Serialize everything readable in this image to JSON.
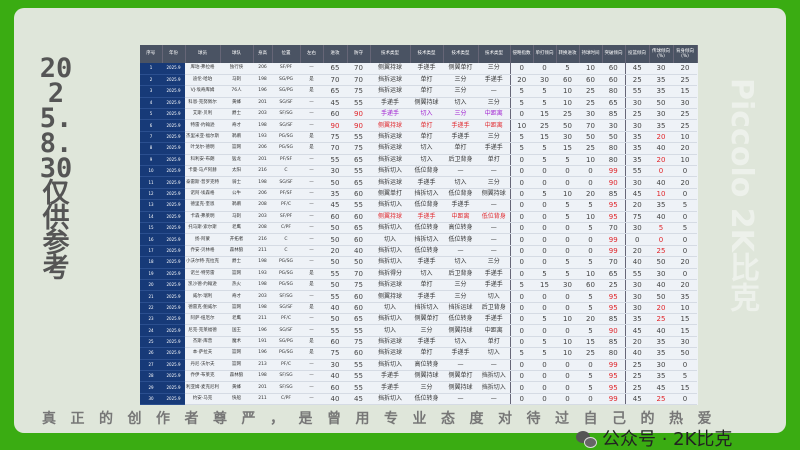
{
  "side_title": "2025.8.30仅供参考",
  "watermark": "Piccolo 2K比克",
  "motto": "真正的创作者尊严，是曾用专业态度对待过自己的热爱",
  "wechat": {
    "icon": "wechat-icon",
    "label": "公众号 · 2K比克"
  },
  "colors": {
    "background": "#3aac12",
    "header": "#4a5363",
    "index_col": "#173a78",
    "highlight_red": "#e0262b",
    "highlight_purple": "#a020d0"
  },
  "headers": [
    "序号",
    "年份",
    "球员",
    "球队",
    "身高",
    "位置",
    "左右",
    "进攻",
    "防守",
    "技术类型",
    "技术类型",
    "技术类型",
    "技术类型",
    "侵略指数",
    "单打倾向",
    "转换进攻",
    "持球时间",
    "突破倾向",
    "投篮倾向",
    "传球倾向(%)",
    "背身倾向(%)"
  ],
  "rows": [
    [
      "1",
      "2025.9",
      "库珀·弗拉格",
      "独行侠",
      "206",
      "SF/PF",
      "—",
      "65",
      "70",
      "侧翼持球",
      "手递手",
      "侧翼单打",
      "三分",
      "0",
      "0",
      "5",
      "10",
      "60",
      "45",
      "30",
      "20",
      ""
    ],
    [
      "2",
      "2025.9",
      "迪伦·哈珀",
      "马刺",
      "198",
      "SG/PG",
      "是",
      "70",
      "70",
      "挡拆运球",
      "单打",
      "三分",
      "手递手",
      "20",
      "30",
      "60",
      "60",
      "60",
      "25",
      "35",
      "25",
      ""
    ],
    [
      "3",
      "2025.9",
      "VJ·埃奇库姆",
      "76人",
      "196",
      "SG/PG",
      "是",
      "65",
      "75",
      "挡拆运球",
      "单打",
      "三分",
      "—",
      "5",
      "5",
      "10",
      "25",
      "80",
      "55",
      "35",
      "15",
      ""
    ],
    [
      "4",
      "2025.9",
      "科恩·克努佩尔",
      "黄蜂",
      "201",
      "SG/SF",
      "—",
      "45",
      "55",
      "手递手",
      "侧翼持球",
      "切入",
      "三分",
      "5",
      "5",
      "10",
      "25",
      "65",
      "30",
      "50",
      "30",
      ""
    ],
    [
      "5",
      "2025.9",
      "艾斯·贝利",
      "爵士",
      "203",
      "SF/SG",
      "—",
      "60",
      "90",
      "手递手",
      "切入",
      "三分",
      "中距离",
      "0",
      "15",
      "25",
      "30",
      "85",
      "25",
      "30",
      "25",
      "purple"
    ],
    [
      "6",
      "2025.9",
      "特雷·约翰逊",
      "奇才",
      "198",
      "SG/SF",
      "—",
      "90",
      "90",
      "侧翼持球",
      "单打",
      "手递手",
      "中距离",
      "10",
      "25",
      "50",
      "70",
      "30",
      "30",
      "35",
      "25",
      "red"
    ],
    [
      "7",
      "2025.9",
      "杰里米亚·福尔斯",
      "鹈鹕",
      "193",
      "PG/SG",
      "是",
      "75",
      "55",
      "挡拆运球",
      "单打",
      "手递手",
      "三分",
      "5",
      "15",
      "30",
      "50",
      "50",
      "35",
      "20",
      "10",
      ""
    ],
    [
      "8",
      "2025.9",
      "叶戈尔·德明",
      "篮网",
      "206",
      "PG/SG",
      "是",
      "70",
      "75",
      "挡拆运球",
      "切入",
      "单打",
      "手递手",
      "5",
      "5",
      "15",
      "25",
      "80",
      "35",
      "40",
      "20",
      ""
    ],
    [
      "9",
      "2025.9",
      "科利安·布朗",
      "猛龙",
      "201",
      "PF/SF",
      "—",
      "55",
      "65",
      "挡拆运球",
      "切入",
      "后卫背身",
      "单打",
      "0",
      "5",
      "5",
      "10",
      "80",
      "35",
      "20",
      "10",
      ""
    ],
    [
      "10",
      "2025.9",
      "卡曼·马卢阿赫",
      "太阳",
      "216",
      "C",
      "—",
      "30",
      "55",
      "挡拆切入",
      "低位背身",
      "—",
      "—",
      "0",
      "0",
      "0",
      "0",
      "99",
      "55",
      "0",
      "0",
      ""
    ],
    [
      "11",
      "2025.9",
      "泰雷斯·普罗克特",
      "骑士",
      "198",
      "SG/SF",
      "—",
      "50",
      "65",
      "挡拆运球",
      "手递手",
      "切入",
      "三分",
      "0",
      "0",
      "0",
      "0",
      "90",
      "30",
      "40",
      "20",
      ""
    ],
    [
      "12",
      "2025.9",
      "诺阿·埃森格",
      "公牛",
      "206",
      "PF/SF",
      "—",
      "35",
      "60",
      "侧翼单打",
      "挡拆切入",
      "低位背身",
      "侧翼持球",
      "0",
      "5",
      "10",
      "20",
      "85",
      "45",
      "10",
      "0",
      ""
    ],
    [
      "13",
      "2025.9",
      "德里克·奎恩",
      "鹈鹕",
      "208",
      "PF/C",
      "—",
      "45",
      "55",
      "挡拆切入",
      "低位背身",
      "手递手",
      "—",
      "0",
      "0",
      "5",
      "5",
      "95",
      "20",
      "35",
      "5",
      ""
    ],
    [
      "14",
      "2025.9",
      "卡森·弗莱明",
      "马刺",
      "203",
      "SF/PF",
      "—",
      "60",
      "60",
      "侧翼持球",
      "手递手",
      "中距离",
      "低位背身",
      "0",
      "0",
      "5",
      "10",
      "95",
      "75",
      "40",
      "0",
      "red"
    ],
    [
      "15",
      "2025.9",
      "托马斯·索尔斯",
      "老鹰",
      "208",
      "C/PF",
      "—",
      "50",
      "65",
      "挡拆切入",
      "低位转身",
      "高位转身",
      "—",
      "0",
      "0",
      "0",
      "5",
      "70",
      "30",
      "5",
      "5",
      ""
    ],
    [
      "16",
      "2025.9",
      "扬·阿蒙",
      "开拓者",
      "216",
      "C",
      "—",
      "50",
      "60",
      "切入",
      "挡拆切入",
      "低位转身",
      "—",
      "0",
      "0",
      "0",
      "0",
      "99",
      "0",
      "0",
      "0",
      ""
    ],
    [
      "17",
      "2025.9",
      "乔安·贝林格",
      "森林狼",
      "211",
      "C",
      "—",
      "20",
      "40",
      "挡拆切入",
      "低位转身",
      "—",
      "—",
      "0",
      "0",
      "0",
      "0",
      "99",
      "20",
      "25",
      "0",
      ""
    ],
    [
      "18",
      "2025.9",
      "小沃尔特·克拉克",
      "爵士",
      "198",
      "PG/SG",
      "—",
      "50",
      "50",
      "挡拆切入",
      "手递手",
      "切入",
      "三分",
      "0",
      "0",
      "5",
      "5",
      "70",
      "40",
      "50",
      "20",
      ""
    ],
    [
      "19",
      "2025.9",
      "诺兰·特劳雷",
      "篮网",
      "193",
      "PG/SG",
      "是",
      "55",
      "70",
      "挡拆得分",
      "切入",
      "后卫背身",
      "手递手",
      "0",
      "5",
      "5",
      "10",
      "65",
      "55",
      "30",
      "0",
      ""
    ],
    [
      "20",
      "2025.9",
      "凯沙德·约翰逊",
      "热火",
      "198",
      "PG/SG",
      "是",
      "50",
      "75",
      "挡拆运球",
      "单打",
      "三分",
      "手递手",
      "5",
      "15",
      "30",
      "60",
      "25",
      "30",
      "40",
      "20",
      ""
    ],
    [
      "21",
      "2025.9",
      "威尔·瑞利",
      "奇才",
      "203",
      "SF/SG",
      "—",
      "55",
      "60",
      "侧翼持球",
      "手递手",
      "三分",
      "切入",
      "0",
      "0",
      "0",
      "5",
      "95",
      "30",
      "50",
      "35",
      ""
    ],
    [
      "22",
      "2025.9",
      "德雷克·鲍威尔",
      "篮网",
      "198",
      "SG/SF",
      "是",
      "40",
      "60",
      "切入",
      "挡拆切入",
      "挡拆运球",
      "后卫背身",
      "0",
      "0",
      "0",
      "5",
      "95",
      "30",
      "20",
      "10",
      ""
    ],
    [
      "23",
      "2025.9",
      "阿萨·纽厄尔",
      "老鹰",
      "211",
      "PF/C",
      "—",
      "50",
      "65",
      "挡拆切入",
      "侧翼单打",
      "低位转身",
      "手递手",
      "0",
      "5",
      "10",
      "20",
      "85",
      "35",
      "25",
      "15",
      ""
    ],
    [
      "24",
      "2025.9",
      "尼克·克莱福德",
      "国王",
      "196",
      "SG/SF",
      "—",
      "55",
      "55",
      "切入",
      "三分",
      "侧翼持球",
      "中距离",
      "0",
      "0",
      "0",
      "5",
      "90",
      "45",
      "40",
      "15",
      ""
    ],
    [
      "25",
      "2025.9",
      "杰斯·库普",
      "魔术",
      "191",
      "SG/PG",
      "是",
      "60",
      "75",
      "挡拆运球",
      "手递手",
      "切入",
      "单打",
      "0",
      "5",
      "10",
      "15",
      "85",
      "20",
      "35",
      "30",
      ""
    ],
    [
      "26",
      "2025.9",
      "本·萨拉夫",
      "篮网",
      "196",
      "PG/SG",
      "是",
      "75",
      "60",
      "挡拆运球",
      "单打",
      "手递手",
      "切入",
      "5",
      "5",
      "10",
      "25",
      "80",
      "40",
      "35",
      "50",
      ""
    ],
    [
      "27",
      "2025.9",
      "丹尼·沃尔夫",
      "篮网",
      "213",
      "PF/C",
      "—",
      "30",
      "55",
      "挡拆切入",
      "高位转身",
      "—",
      "—",
      "0",
      "0",
      "0",
      "0",
      "99",
      "25",
      "30",
      "0",
      ""
    ],
    [
      "28",
      "2025.9",
      "乔伊·布莱克",
      "森林狼",
      "198",
      "SF/SG",
      "—",
      "40",
      "55",
      "手递手",
      "侧翼持球",
      "侧翼单打",
      "挡拆切入",
      "0",
      "0",
      "0",
      "5",
      "95",
      "25",
      "35",
      "5",
      ""
    ],
    [
      "29",
      "2025.9",
      "利亚姆·麦克尼利",
      "黄蜂",
      "201",
      "SF/SG",
      "—",
      "60",
      "55",
      "手递手",
      "三分",
      "侧翼持球",
      "挡拆切入",
      "0",
      "0",
      "0",
      "5",
      "95",
      "25",
      "45",
      "15",
      ""
    ],
    [
      "30",
      "2025.9",
      "约安·马克",
      "快船",
      "211",
      "C/PF",
      "—",
      "40",
      "45",
      "挡拆切入",
      "低位转身",
      "—",
      "—",
      "0",
      "0",
      "0",
      "0",
      "99",
      "45",
      "25",
      "0",
      ""
    ]
  ]
}
